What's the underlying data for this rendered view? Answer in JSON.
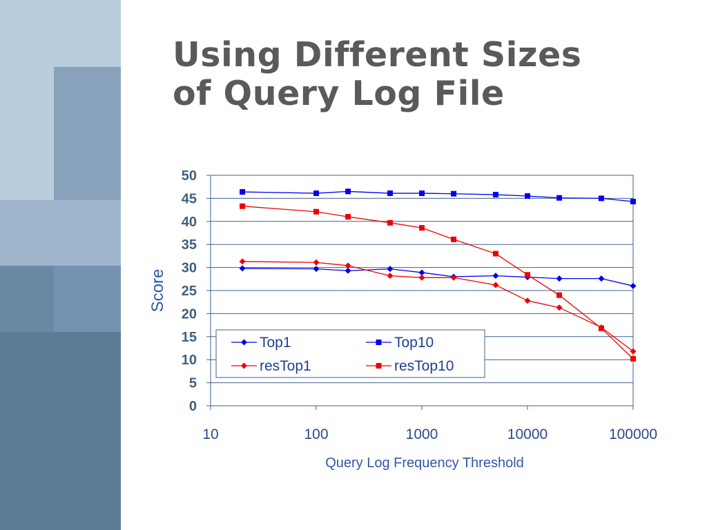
{
  "slide": {
    "title_lines": [
      "Using Different Sizes",
      "of Query Log File"
    ]
  },
  "colors": {
    "blue": "#0000ee",
    "red": "#ee0000",
    "grid": "#3f5f8f",
    "sidebar": [
      "#b8ccdc",
      "#9fb5cc",
      "#8aa3bd",
      "#7592b0",
      "#6a88a4",
      "#5d7b96"
    ]
  },
  "chart_data": {
    "type": "line",
    "title": "",
    "xlabel": "Query Log Frequency Threshold",
    "ylabel": "Score",
    "xscale": "log",
    "xlim": [
      10,
      100000
    ],
    "ylim": [
      0,
      50
    ],
    "x_ticks": [
      "10",
      "100",
      "1000",
      "10000",
      "100000"
    ],
    "y_ticks": [
      "0",
      "5",
      "10",
      "15",
      "20",
      "25",
      "30",
      "35",
      "40",
      "45",
      "50"
    ],
    "grid": true,
    "legend_position": "bottom-left",
    "series": [
      {
        "name": "Top1",
        "color": "#0000ee",
        "marker": "diamond",
        "x": [
          20,
          100,
          200,
          500,
          1000,
          2000,
          5000,
          10000,
          20000,
          50000,
          100000
        ],
        "y": [
          29.8,
          29.7,
          29.3,
          29.7,
          28.9,
          28.0,
          28.2,
          27.9,
          27.6,
          27.6,
          26.0
        ]
      },
      {
        "name": "Top10",
        "color": "#0000ee",
        "marker": "square",
        "x": [
          20,
          100,
          200,
          500,
          1000,
          2000,
          5000,
          10000,
          20000,
          50000,
          100000
        ],
        "y": [
          46.4,
          46.1,
          46.5,
          46.1,
          46.1,
          46.0,
          45.8,
          45.5,
          45.1,
          45.0,
          44.3
        ]
      },
      {
        "name": "resTop1",
        "color": "#ee0000",
        "marker": "diamond",
        "x": [
          20,
          100,
          200,
          500,
          1000,
          2000,
          5000,
          10000,
          20000,
          50000,
          100000
        ],
        "y": [
          31.3,
          31.1,
          30.4,
          28.2,
          27.8,
          27.8,
          26.2,
          22.8,
          21.3,
          17.0,
          11.8
        ]
      },
      {
        "name": "resTop10",
        "color": "#ee0000",
        "marker": "square",
        "x": [
          20,
          100,
          200,
          500,
          1000,
          2000,
          5000,
          10000,
          20000,
          50000,
          100000
        ],
        "y": [
          43.3,
          42.1,
          41.0,
          39.7,
          38.6,
          36.1,
          33.0,
          28.4,
          24.0,
          16.8,
          10.2
        ]
      }
    ]
  }
}
